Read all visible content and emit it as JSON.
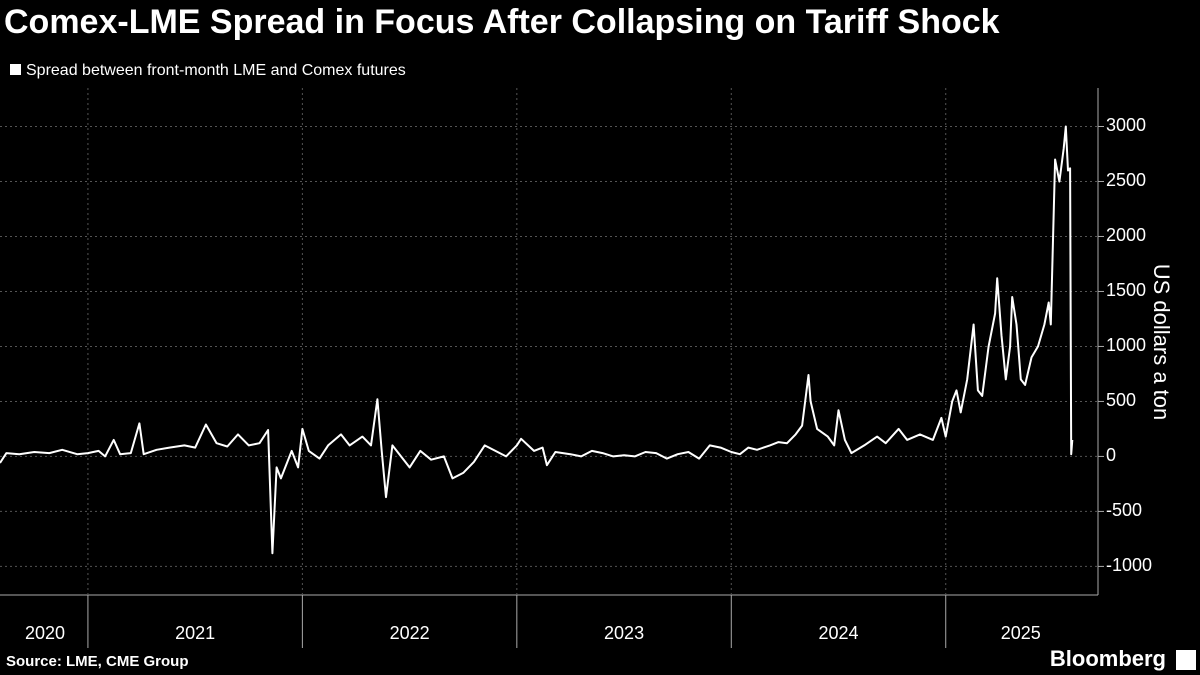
{
  "chart_data": {
    "type": "line",
    "title": "Comex-LME Spread in Focus After Collapsing on Tariff Shock",
    "source": "Source: LME, CME Group",
    "brand": "Bloomberg",
    "y_label": "US dollars a ton",
    "grid": true,
    "xlim": [
      2020.59,
      2025.71
    ],
    "ylim": [
      -1260,
      3350
    ],
    "yticks": [
      -1000,
      -500,
      0,
      500,
      1000,
      1500,
      2000,
      2500,
      3000
    ],
    "xticks": [
      {
        "value": 2020.8,
        "label": "2020"
      },
      {
        "value": 2021.5,
        "label": "2021"
      },
      {
        "value": 2022.5,
        "label": "2022"
      },
      {
        "value": 2023.5,
        "label": "2023"
      },
      {
        "value": 2024.5,
        "label": "2024"
      },
      {
        "value": 2025.35,
        "label": "2025"
      }
    ],
    "year_boundaries": [
      2021,
      2022,
      2023,
      2024,
      2025
    ],
    "series": [
      {
        "name": "Spread between front-month LME and Comex futures",
        "color": "#ffffff",
        "x": [
          2020.59,
          2020.62,
          2020.68,
          2020.75,
          2020.82,
          2020.88,
          2020.95,
          2021.0,
          2021.05,
          2021.08,
          2021.12,
          2021.15,
          2021.2,
          2021.24,
          2021.26,
          2021.32,
          2021.38,
          2021.45,
          2021.5,
          2021.55,
          2021.6,
          2021.65,
          2021.7,
          2021.75,
          2021.8,
          2021.84,
          2021.86,
          2021.88,
          2021.9,
          2021.95,
          2021.98,
          2022.0,
          2022.03,
          2022.08,
          2022.12,
          2022.18,
          2022.22,
          2022.28,
          2022.32,
          2022.35,
          2022.37,
          2022.39,
          2022.42,
          2022.46,
          2022.5,
          2022.55,
          2022.6,
          2022.66,
          2022.7,
          2022.75,
          2022.8,
          2022.85,
          2022.9,
          2022.95,
          2023.0,
          2023.02,
          2023.08,
          2023.12,
          2023.14,
          2023.18,
          2023.25,
          2023.3,
          2023.35,
          2023.4,
          2023.45,
          2023.5,
          2023.55,
          2023.6,
          2023.65,
          2023.7,
          2023.75,
          2023.8,
          2023.85,
          2023.9,
          2023.95,
          2024.0,
          2024.04,
          2024.08,
          2024.12,
          2024.18,
          2024.22,
          2024.26,
          2024.3,
          2024.33,
          2024.36,
          2024.37,
          2024.4,
          2024.45,
          2024.48,
          2024.5,
          2024.53,
          2024.56,
          2024.62,
          2024.68,
          2024.72,
          2024.78,
          2024.82,
          2024.88,
          2024.94,
          2024.98,
          2025.0,
          2025.03,
          2025.05,
          2025.07,
          2025.1,
          2025.13,
          2025.15,
          2025.17,
          2025.2,
          2025.23,
          2025.24,
          2025.26,
          2025.28,
          2025.3,
          2025.31,
          2025.33,
          2025.35,
          2025.37,
          2025.4,
          2025.43,
          2025.46,
          2025.48,
          2025.49,
          2025.51,
          2025.53,
          2025.55,
          2025.56,
          2025.57,
          2025.58,
          2025.585,
          2025.59
        ],
        "values": [
          -60,
          30,
          20,
          40,
          30,
          60,
          20,
          30,
          50,
          0,
          150,
          20,
          30,
          300,
          20,
          60,
          80,
          100,
          80,
          290,
          120,
          90,
          200,
          100,
          120,
          240,
          -880,
          -100,
          -200,
          50,
          -100,
          250,
          50,
          -20,
          100,
          200,
          100,
          180,
          100,
          520,
          50,
          -370,
          100,
          0,
          -100,
          50,
          -30,
          0,
          -200,
          -150,
          -50,
          100,
          50,
          0,
          100,
          160,
          50,
          80,
          -80,
          40,
          20,
          0,
          50,
          30,
          0,
          10,
          0,
          40,
          30,
          -20,
          20,
          40,
          -20,
          100,
          80,
          40,
          20,
          80,
          60,
          100,
          130,
          120,
          200,
          280,
          740,
          500,
          250,
          180,
          100,
          420,
          150,
          30,
          100,
          180,
          120,
          250,
          150,
          200,
          150,
          350,
          180,
          500,
          600,
          400,
          700,
          1200,
          600,
          550,
          1000,
          1300,
          1620,
          1100,
          700,
          1000,
          1450,
          1200,
          700,
          650,
          900,
          1000,
          1200,
          1400,
          1200,
          2700,
          2500,
          2800,
          3000,
          2600,
          2620,
          20,
          150
        ]
      }
    ]
  }
}
